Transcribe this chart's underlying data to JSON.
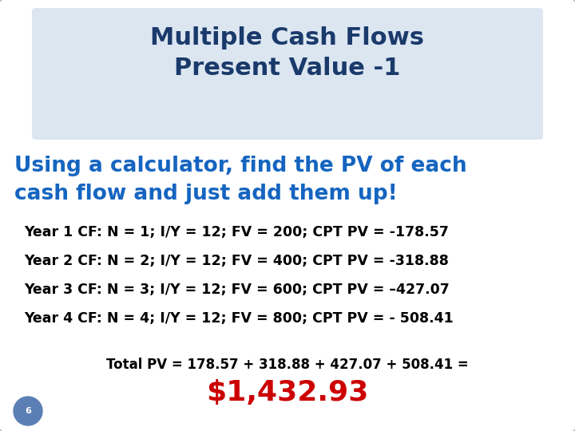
{
  "title_line1": "Multiple Cash Flows",
  "title_line2": "Present Value -1",
  "title_color": "#1a3a6b",
  "title_bg_color": "#dce6f1",
  "subtitle_line1": "Using a calculator, find the PV of each",
  "subtitle_line2": "cash flow and just add them up!",
  "subtitle_color": "#1565C0",
  "cf_lines": [
    "Year 1 CF: N = 1; I/Y = 12; FV = 200; CPT PV = -178.57",
    "Year 2 CF: N = 2; I/Y = 12; FV = 400; CPT PV = -318.88",
    "Year 3 CF: N = 3; I/Y = 12; FV = 600; CPT PV = –427.07",
    "Year 4 CF: N = 4; I/Y = 12; FV = 800; CPT PV = - 508.41"
  ],
  "cf_color": "#000000",
  "total_line": "Total PV = 178.57 + 318.88 + 427.07 + 508.41 =",
  "total_color": "#000000",
  "result": "$1,432.93",
  "result_color": "#cc0000",
  "bg_color": "#ffffff",
  "outer_border_color": "#bbbbbb",
  "slide_number": "6",
  "slide_number_color": "#ffffff",
  "slide_number_bg": "#5b7fb5"
}
